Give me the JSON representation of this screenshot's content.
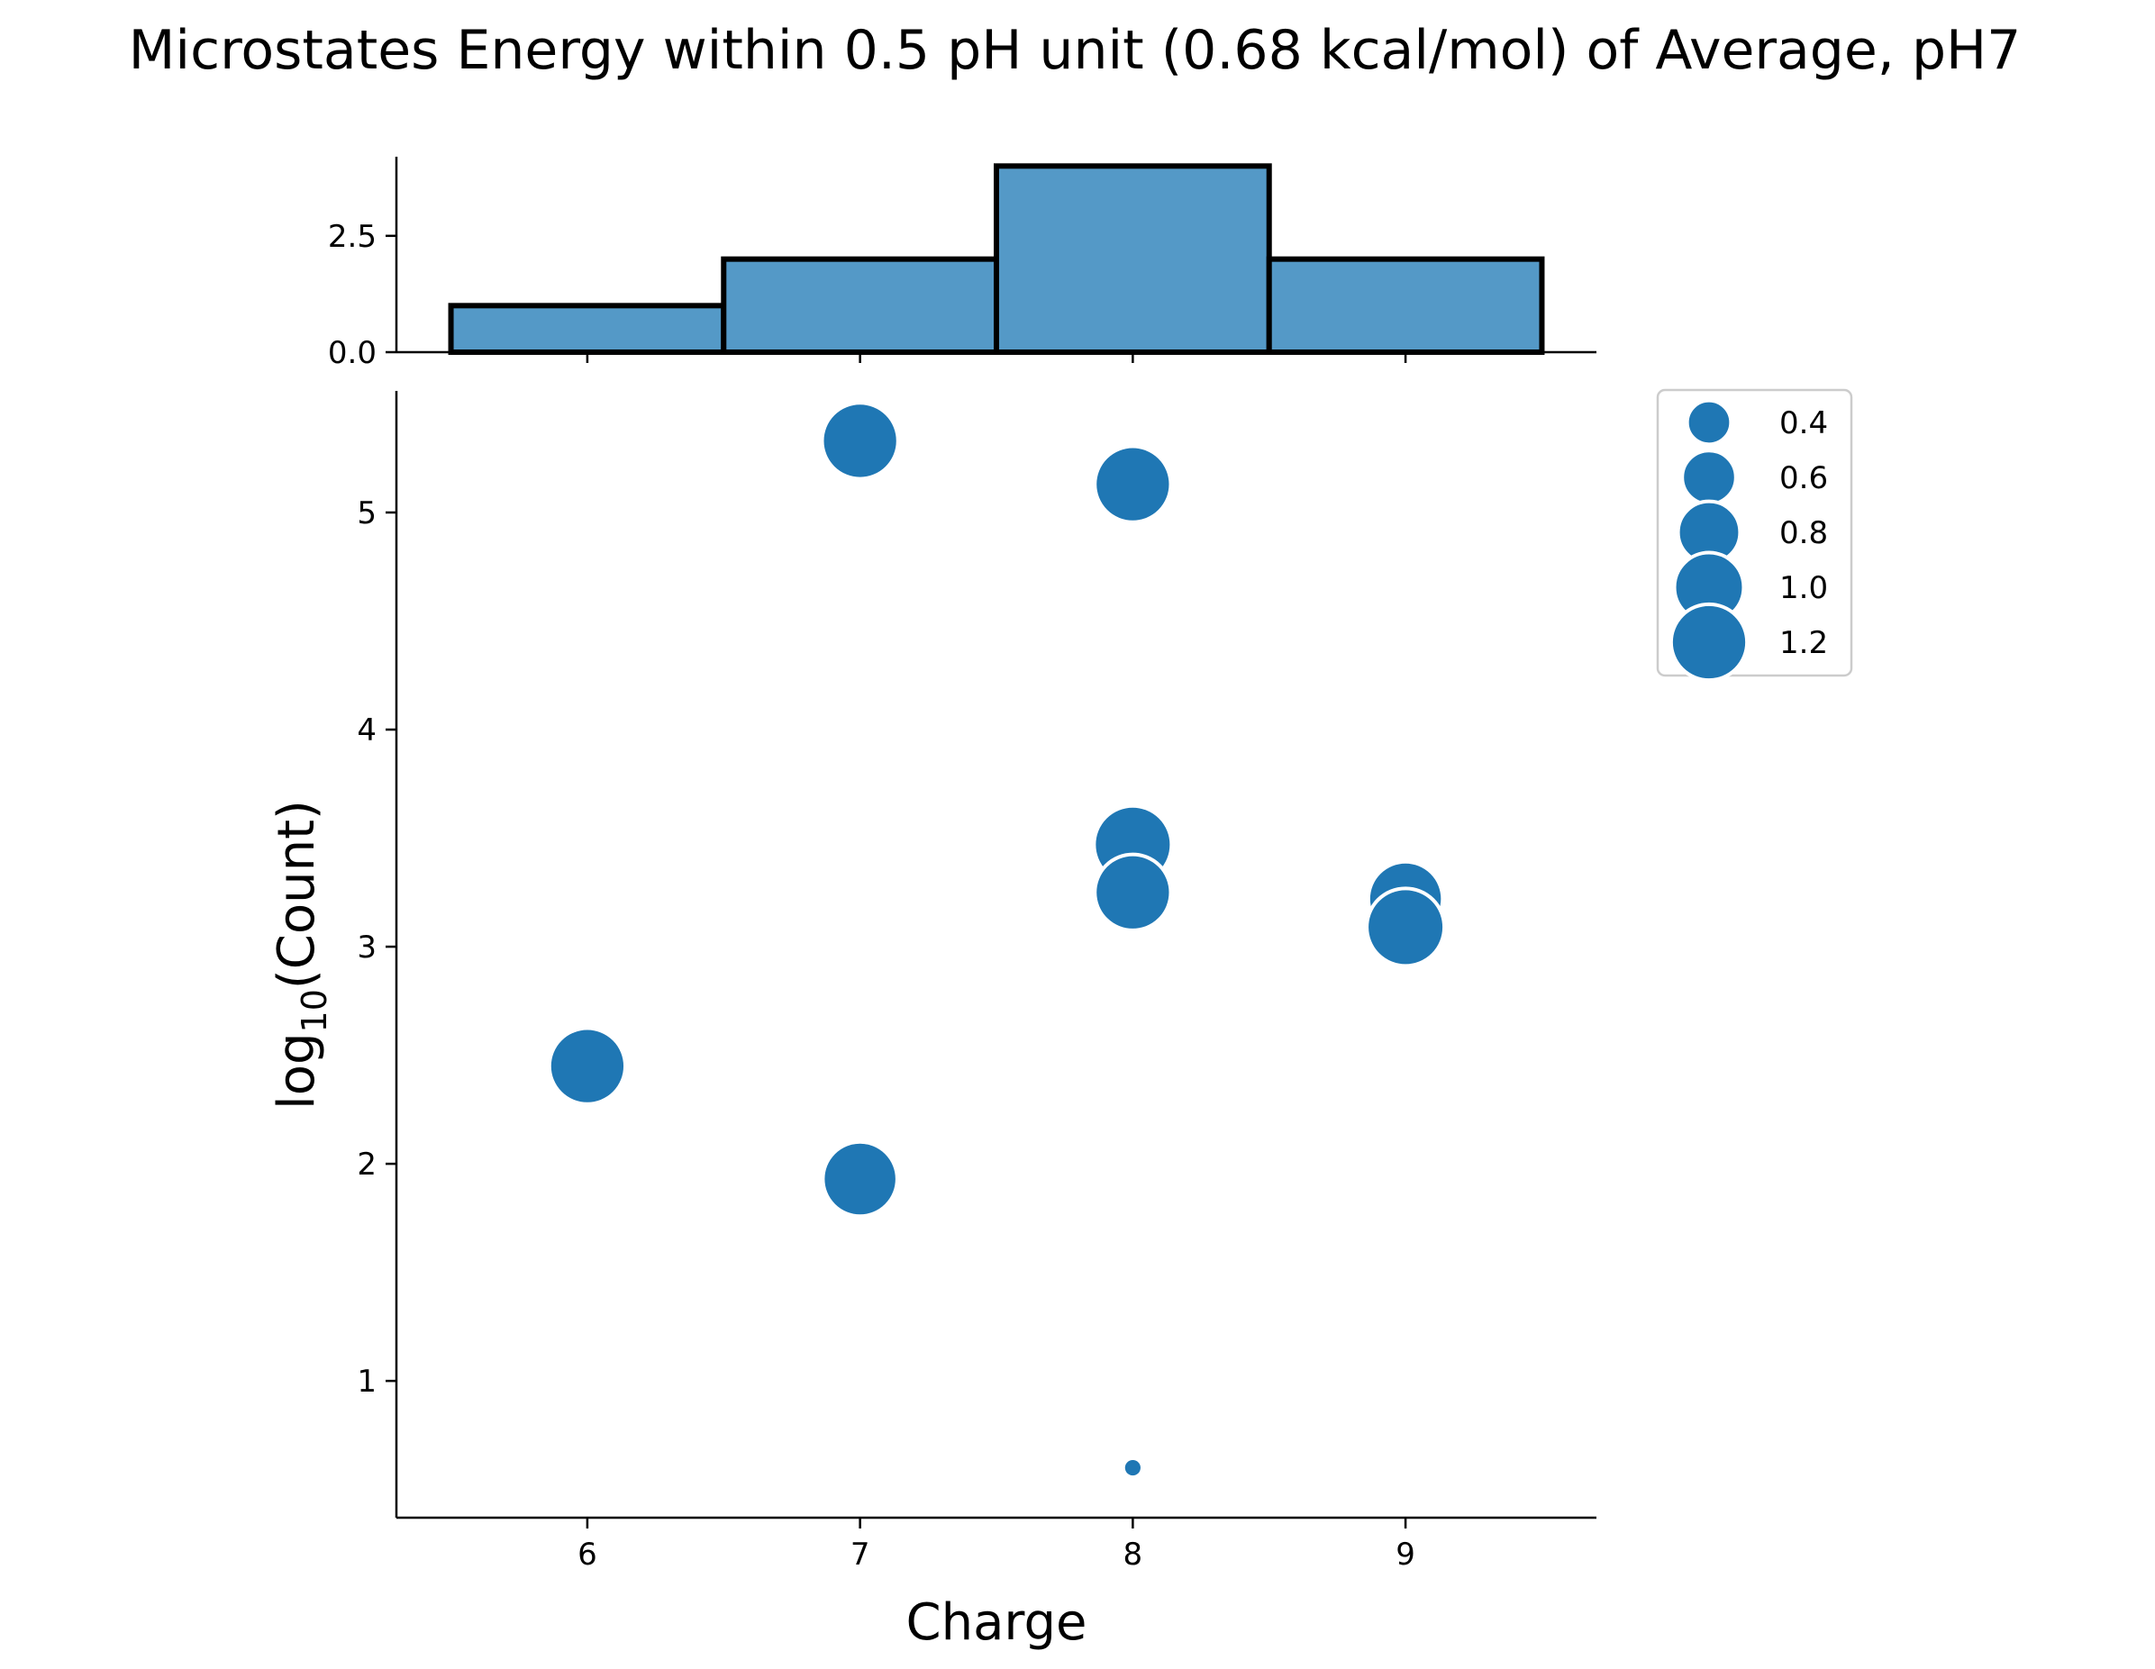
{
  "chart_data": {
    "title": "Microstates Energy within 0.5 pH unit (0.68 kcal/mol) of Average, pH7",
    "marginal_histogram": {
      "type": "bar",
      "bin_edges": [
        5.5,
        6.5,
        7.5,
        8.5,
        9.5
      ],
      "counts": [
        1,
        2,
        4,
        2
      ],
      "ylim": [
        0,
        4.2
      ],
      "yticks": [
        0.0,
        2.5
      ],
      "ytick_labels": [
        "0.0",
        "2.5"
      ],
      "color": "#5499c7",
      "edge_color": "#000000"
    },
    "scatter": {
      "type": "scatter",
      "xlabel": "Charge",
      "ylabel_base": "log",
      "ylabel_subscript": "10",
      "ylabel_suffix": "(Count)",
      "xlim": [
        5.3,
        9.7
      ],
      "ylim": [
        0.37,
        5.56
      ],
      "xticks": [
        6,
        7,
        8,
        9
      ],
      "xtick_labels": [
        "6",
        "7",
        "8",
        "9"
      ],
      "yticks": [
        1,
        2,
        3,
        4,
        5
      ],
      "ytick_labels": [
        "1",
        "2",
        "3",
        "4",
        "5"
      ],
      "color": "#1f77b4",
      "points": [
        {
          "x": 7,
          "y": 5.33,
          "size": 1.2
        },
        {
          "x": 8,
          "y": 5.13,
          "size": 1.2
        },
        {
          "x": 8,
          "y": 3.47,
          "size": 1.25
        },
        {
          "x": 8,
          "y": 3.25,
          "size": 1.2
        },
        {
          "x": 9,
          "y": 3.22,
          "size": 1.15
        },
        {
          "x": 9,
          "y": 3.09,
          "size": 1.25
        },
        {
          "x": 6,
          "y": 2.45,
          "size": 1.2
        },
        {
          "x": 7,
          "y": 1.93,
          "size": 1.15
        },
        {
          "x": 8,
          "y": 0.6,
          "size": 0.05
        }
      ]
    },
    "legend": {
      "placement": "upper-right-outside",
      "entries": [
        {
          "label": "0.4",
          "size": 0.4
        },
        {
          "label": "0.6",
          "size": 0.6
        },
        {
          "label": "0.8",
          "size": 0.8
        },
        {
          "label": "1.0",
          "size": 1.0
        },
        {
          "label": "1.2",
          "size": 1.2
        }
      ]
    }
  }
}
